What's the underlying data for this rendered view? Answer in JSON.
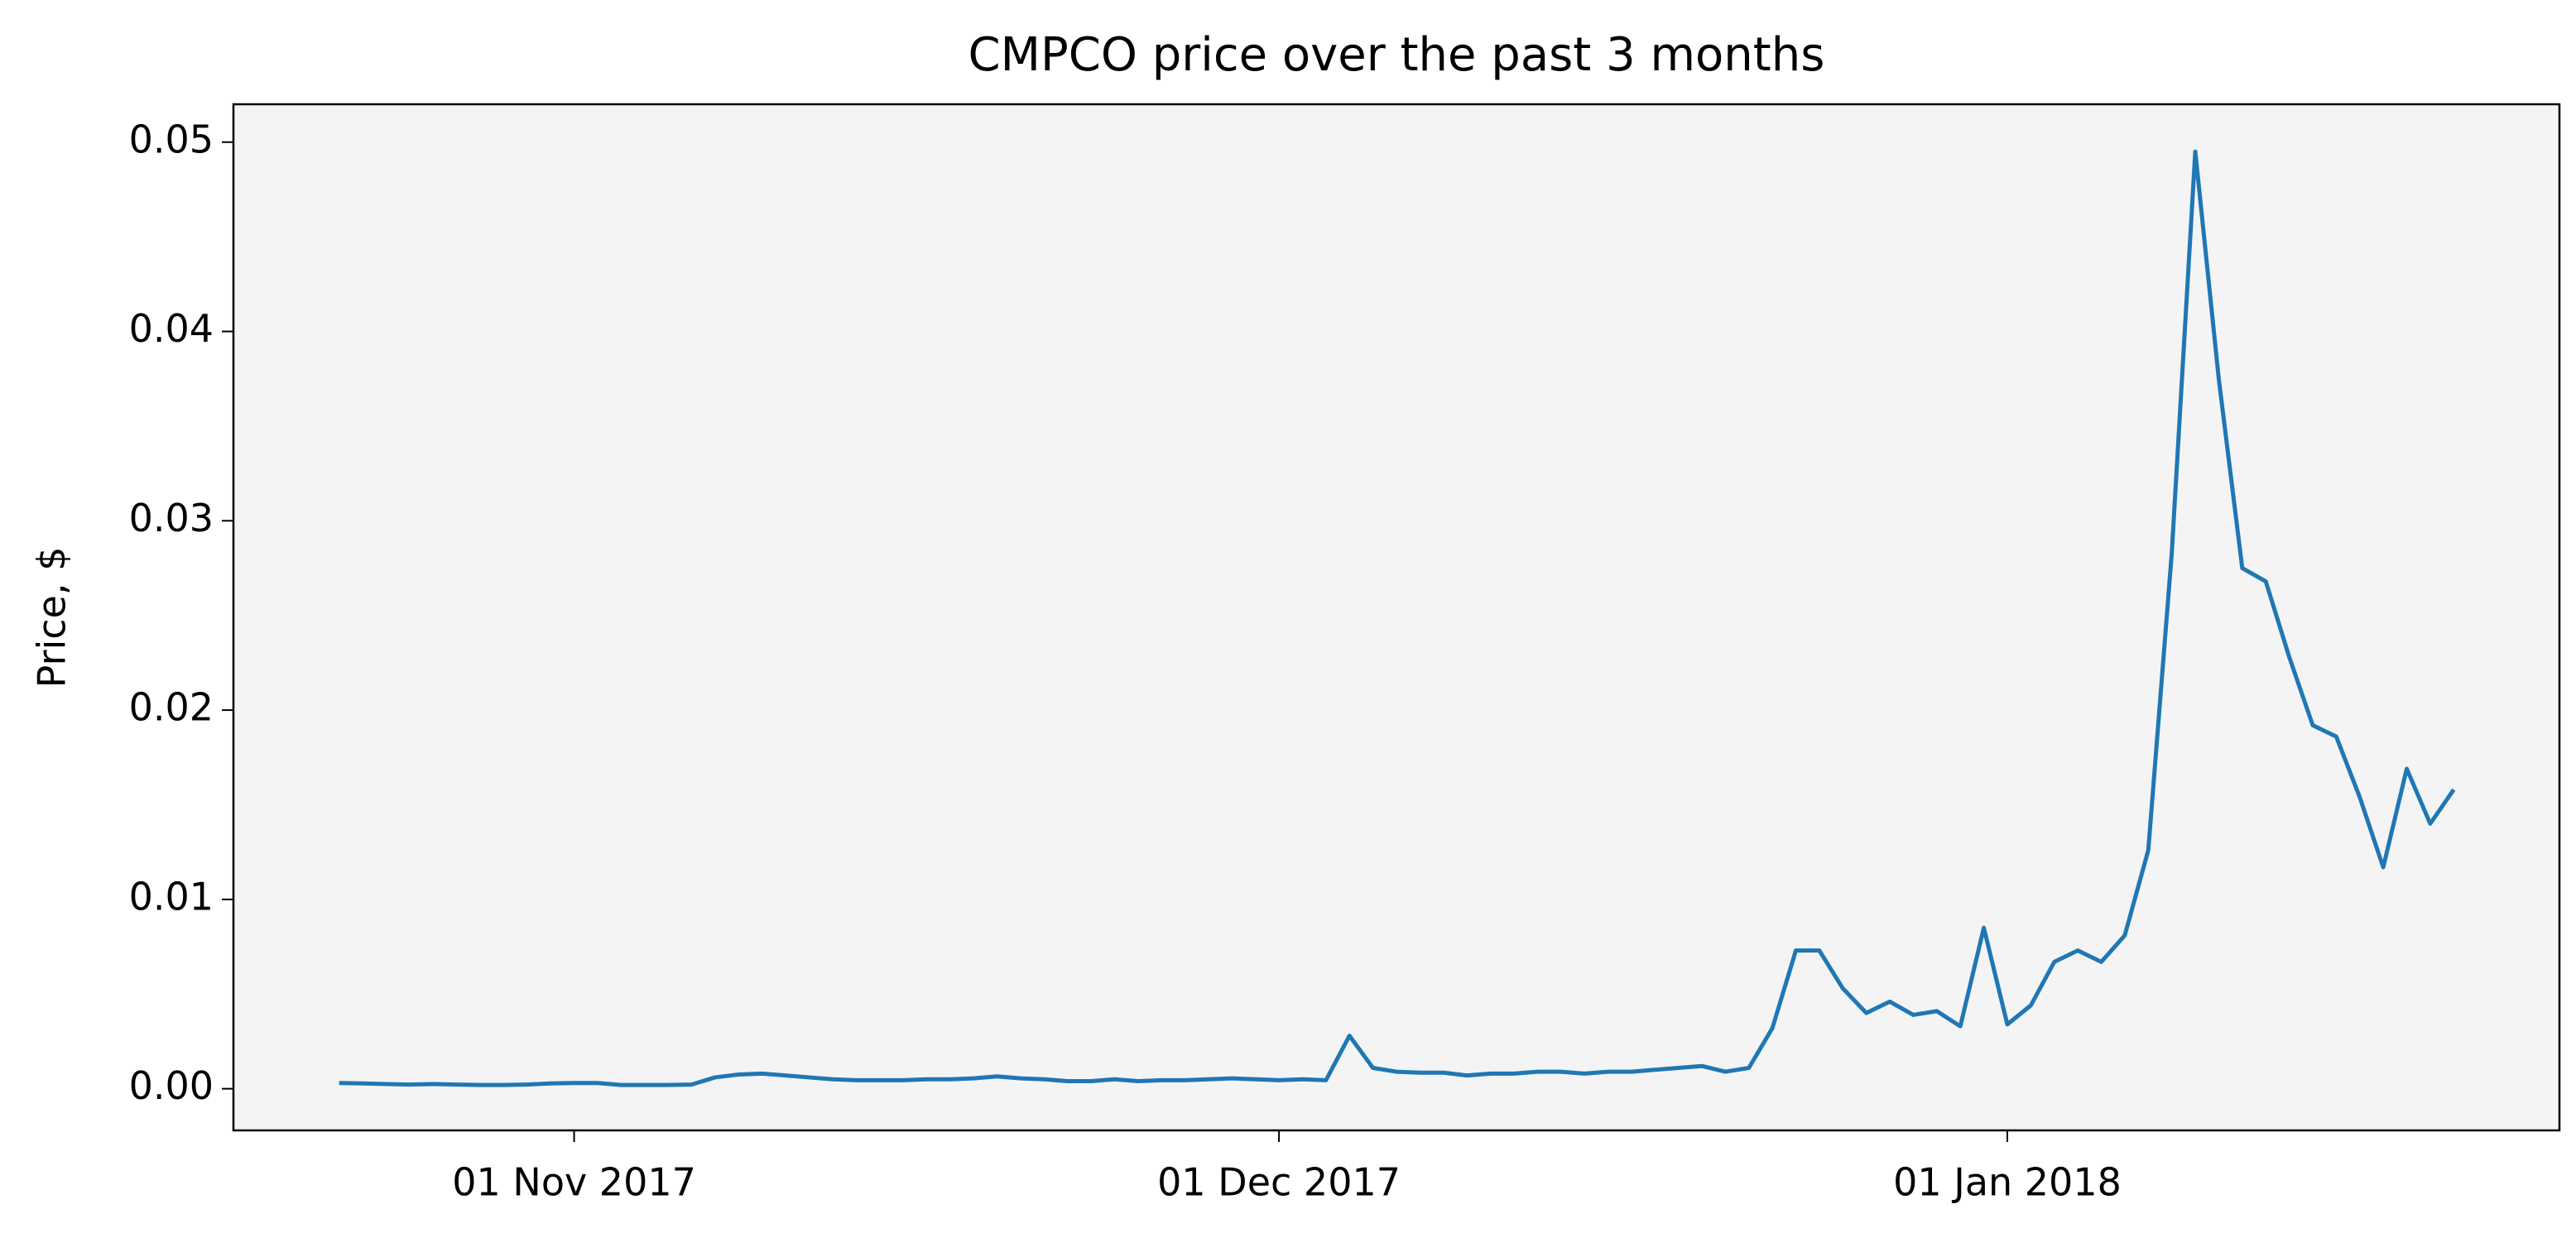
{
  "chart_data": {
    "type": "line",
    "title": "CMPCO price over the past 3 months",
    "y_label": "Price, $",
    "color": "#1f77b4",
    "x": [
      "2017-10-22",
      "2017-10-23",
      "2017-10-24",
      "2017-10-25",
      "2017-10-26",
      "2017-10-27",
      "2017-10-28",
      "2017-10-29",
      "2017-10-30",
      "2017-10-31",
      "2017-11-01",
      "2017-11-02",
      "2017-11-03",
      "2017-11-04",
      "2017-11-05",
      "2017-11-06",
      "2017-11-07",
      "2017-11-08",
      "2017-11-09",
      "2017-11-10",
      "2017-11-11",
      "2017-11-12",
      "2017-11-13",
      "2017-11-14",
      "2017-11-15",
      "2017-11-16",
      "2017-11-17",
      "2017-11-18",
      "2017-11-19",
      "2017-11-20",
      "2017-11-21",
      "2017-11-22",
      "2017-11-23",
      "2017-11-24",
      "2017-11-25",
      "2017-11-26",
      "2017-11-27",
      "2017-11-28",
      "2017-11-29",
      "2017-11-30",
      "2017-12-01",
      "2017-12-02",
      "2017-12-03",
      "2017-12-04",
      "2017-12-05",
      "2017-12-06",
      "2017-12-07",
      "2017-12-08",
      "2017-12-09",
      "2017-12-10",
      "2017-12-11",
      "2017-12-12",
      "2017-12-13",
      "2017-12-14",
      "2017-12-15",
      "2017-12-16",
      "2017-12-17",
      "2017-12-18",
      "2017-12-19",
      "2017-12-20",
      "2017-12-21",
      "2017-12-22",
      "2017-12-23",
      "2017-12-24",
      "2017-12-25",
      "2017-12-26",
      "2017-12-27",
      "2017-12-28",
      "2017-12-29",
      "2017-12-30",
      "2017-12-31",
      "2018-01-01",
      "2018-01-02",
      "2018-01-03",
      "2018-01-04",
      "2018-01-05",
      "2018-01-06",
      "2018-01-07",
      "2018-01-08",
      "2018-01-09",
      "2018-01-10",
      "2018-01-11",
      "2018-01-12",
      "2018-01-13",
      "2018-01-14",
      "2018-01-15",
      "2018-01-16",
      "2018-01-17",
      "2018-01-18",
      "2018-01-19",
      "2018-01-20"
    ],
    "values": [
      0.0003,
      0.00028,
      0.00025,
      0.00022,
      0.00025,
      0.00022,
      0.0002,
      0.0002,
      0.00022,
      0.00028,
      0.0003,
      0.0003,
      0.0002,
      0.0002,
      0.0002,
      0.00022,
      0.0006,
      0.00075,
      0.0008,
      0.0007,
      0.0006,
      0.0005,
      0.00045,
      0.00045,
      0.00045,
      0.0005,
      0.0005,
      0.00055,
      0.00065,
      0.00055,
      0.0005,
      0.0004,
      0.0004,
      0.0005,
      0.0004,
      0.00045,
      0.00045,
      0.0005,
      0.00055,
      0.0005,
      0.00045,
      0.0005,
      0.00045,
      0.0028,
      0.0011,
      0.0009,
      0.00085,
      0.00085,
      0.0007,
      0.0008,
      0.0008,
      0.0009,
      0.0009,
      0.0008,
      0.0009,
      0.0009,
      0.001,
      0.0011,
      0.0012,
      0.0009,
      0.0011,
      0.0032,
      0.0073,
      0.0073,
      0.0053,
      0.004,
      0.0046,
      0.0039,
      0.0041,
      0.0033,
      0.0085,
      0.0034,
      0.0044,
      0.0067,
      0.0073,
      0.0067,
      0.0081,
      0.0126,
      0.0283,
      0.0495,
      0.0375,
      0.0275,
      0.0268,
      0.0228,
      0.0192,
      0.0186,
      0.0154,
      0.0117,
      0.0169,
      0.014,
      0.0158
    ],
    "xlim": [
      "2017-10-17T12:00:00Z",
      "2018-01-24T12:00:00Z"
    ],
    "xticks": [
      {
        "value": "2017-11-01",
        "label": "01 Nov 2017"
      },
      {
        "value": "2017-12-01",
        "label": "01 Dec 2017"
      },
      {
        "value": "2018-01-01",
        "label": "01 Jan 2018"
      }
    ],
    "ylim": [
      -0.0022,
      0.052
    ],
    "yticks": [
      {
        "value": 0,
        "label": "0.00"
      },
      {
        "value": 0.01,
        "label": "0.01"
      },
      {
        "value": 0.02,
        "label": "0.02"
      },
      {
        "value": 0.03,
        "label": "0.03"
      },
      {
        "value": 0.04,
        "label": "0.04"
      },
      {
        "value": 0.05,
        "label": "0.05"
      }
    ],
    "background": "#f4f4f4"
  }
}
